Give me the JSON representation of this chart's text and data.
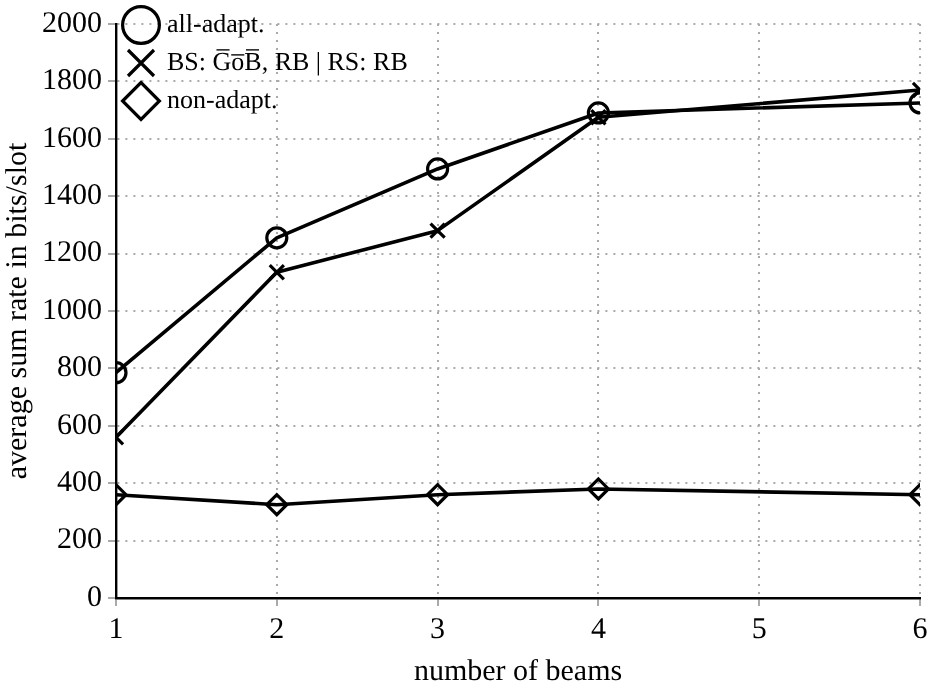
{
  "chart_data": {
    "type": "line",
    "xlabel": "number of beams",
    "ylabel": "average sum rate in bits/slot",
    "x": [
      1,
      2,
      3,
      4,
      6
    ],
    "series": [
      {
        "name": "all-adapt.",
        "color": "#000000",
        "marker": "circle",
        "values": [
          785,
          1255,
          1495,
          1690,
          1725
        ]
      },
      {
        "name": "BS: G̅o̅B̅, RB | RS: RB",
        "color": "#000000",
        "marker": "cross",
        "values": [
          560,
          1135,
          1280,
          1675,
          1770
        ]
      },
      {
        "name": "non-adapt.",
        "color": "#000000",
        "marker": "diamond",
        "values": [
          360,
          325,
          360,
          380,
          360
        ]
      }
    ],
    "xlim": [
      1,
      6
    ],
    "xticks": [
      1,
      2,
      3,
      4,
      5,
      6
    ],
    "ylim": [
      0,
      2000
    ],
    "yticks": [
      0,
      200,
      400,
      600,
      800,
      1000,
      1200,
      1400,
      1600,
      1800,
      2000
    ],
    "grid": true,
    "legend": "top left",
    "line_style": "solid"
  }
}
